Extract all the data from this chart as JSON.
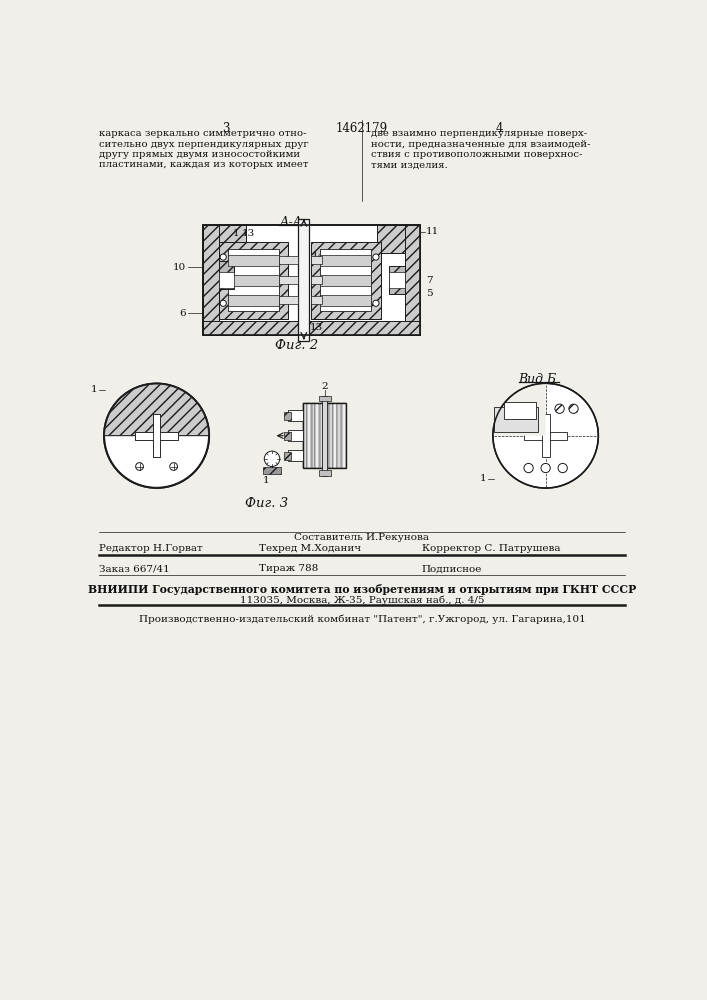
{
  "bg_color": "#f0efea",
  "line_color": "#1a1a1a",
  "text_color": "#111111",
  "page_num_left": "3",
  "patent_number": "1462179",
  "page_num_right": "4",
  "header_left": "каркаса зеркально симметрично отно-\nсительно двух перпендикулярных друг\nдругу прямых двумя износостойкими\nпластинами, каждая из которых имеет",
  "header_right": "две взаимно перпендикулярные поверх-\nности, предназначенные для взаимодей-\nствия с противоположными поверхнос-\nтями изделия.",
  "fig2_label": "А-А",
  "fig2_caption": "Фиг. 2",
  "fig3_label": "Вид Б",
  "fig3_caption": "Фиг. 3",
  "footer_col1_r1": "Составитель И.Рекунова",
  "footer_col1_r2": "Редактор Н.Горват",
  "footer_col2_r2": "Техред М.Ходанич",
  "footer_col3_r2": "Корректор С. Патрушева",
  "footer_r3_c1": "Заказ 667/41",
  "footer_r3_c2": "Тираж 788",
  "footer_r3_c3": "Подписное",
  "footer_vniiipi": "ВНИИПИ Государственного комитета по изобретениям и открытиям при ГКНТ СССР",
  "footer_address": "113035, Москва, Ж-35, Раушская наб., д. 4/5",
  "footer_patent": "Производственно-издательский комбинат \"Патент\", г.Ужгород, ул. Гагарина,101"
}
